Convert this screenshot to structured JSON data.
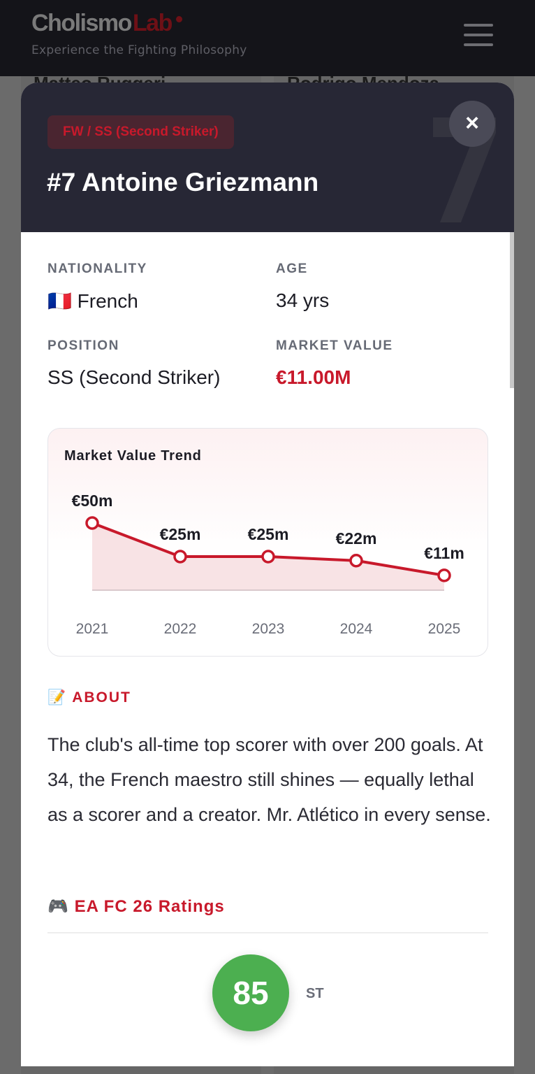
{
  "header": {
    "logo_part1": "Cholismo",
    "logo_part2": "Lab",
    "tagline": "Experience the Fighting Philosophy"
  },
  "background": {
    "names": [
      "Matteo Ruggeri",
      "Rodrigo Mendoza"
    ]
  },
  "modal": {
    "position_badge": "FW / SS (Second Striker)",
    "title": "#7 Antoine Griezmann",
    "jersey_watermark": "7",
    "close": "×",
    "nationality_label": "NATIONALITY",
    "nationality_flag": "🇫🇷",
    "nationality": "French",
    "age_label": "AGE",
    "age": "34 yrs",
    "position_label": "POSITION",
    "position": "SS (Second Striker)",
    "market_value_label": "MARKET VALUE",
    "market_value": "€11.00M",
    "about_icon": "📝",
    "about_label": "ABOUT",
    "about_text": "The club's all-time top scorer with over 200 goals. At 34, the French maestro still shines — equally lethal as a scorer and a creator. Mr. Atlético in every sense.",
    "ratings_icon": "🎮",
    "ratings_label": "EA FC 26 Ratings",
    "overall": "85",
    "rating_position": "ST",
    "rating_color": "#4caf50",
    "accent": "#c8192b"
  },
  "chart_data": {
    "type": "area",
    "title": "Market Value Trend",
    "categories": [
      "2021",
      "2022",
      "2023",
      "2024",
      "2025"
    ],
    "values": [
      50,
      25,
      25,
      22,
      11
    ],
    "labels": [
      "€50m",
      "€25m",
      "€25m",
      "€22m",
      "€11m"
    ],
    "unit": "€m",
    "color": "#c8192b"
  }
}
